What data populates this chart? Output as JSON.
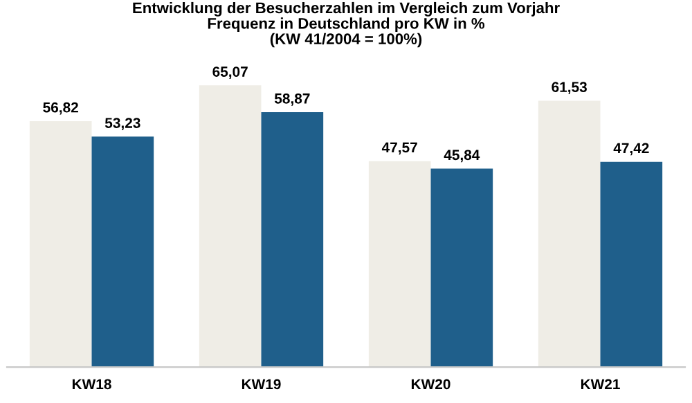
{
  "chart_data": {
    "type": "bar",
    "title": "Entwicklung der Besucherzahlen im Vergleich zum Vorjahr\nFrequenz in Deutschland pro KW in %\n(KW 41/2004 = 100%)",
    "categories": [
      "KW18",
      "KW19",
      "KW20",
      "KW21"
    ],
    "series": [
      {
        "color": "#efede6",
        "values": [
          56.82,
          65.07,
          47.57,
          61.53
        ],
        "value_labels": [
          "56,82",
          "65,07",
          "47,57",
          "61,53"
        ]
      },
      {
        "color": "#1f5f8b",
        "values": [
          53.23,
          58.87,
          45.84,
          47.42
        ],
        "value_labels": [
          "53,23",
          "58,87",
          "45,84",
          "47,42"
        ]
      }
    ],
    "grid": false,
    "legend": false
  }
}
